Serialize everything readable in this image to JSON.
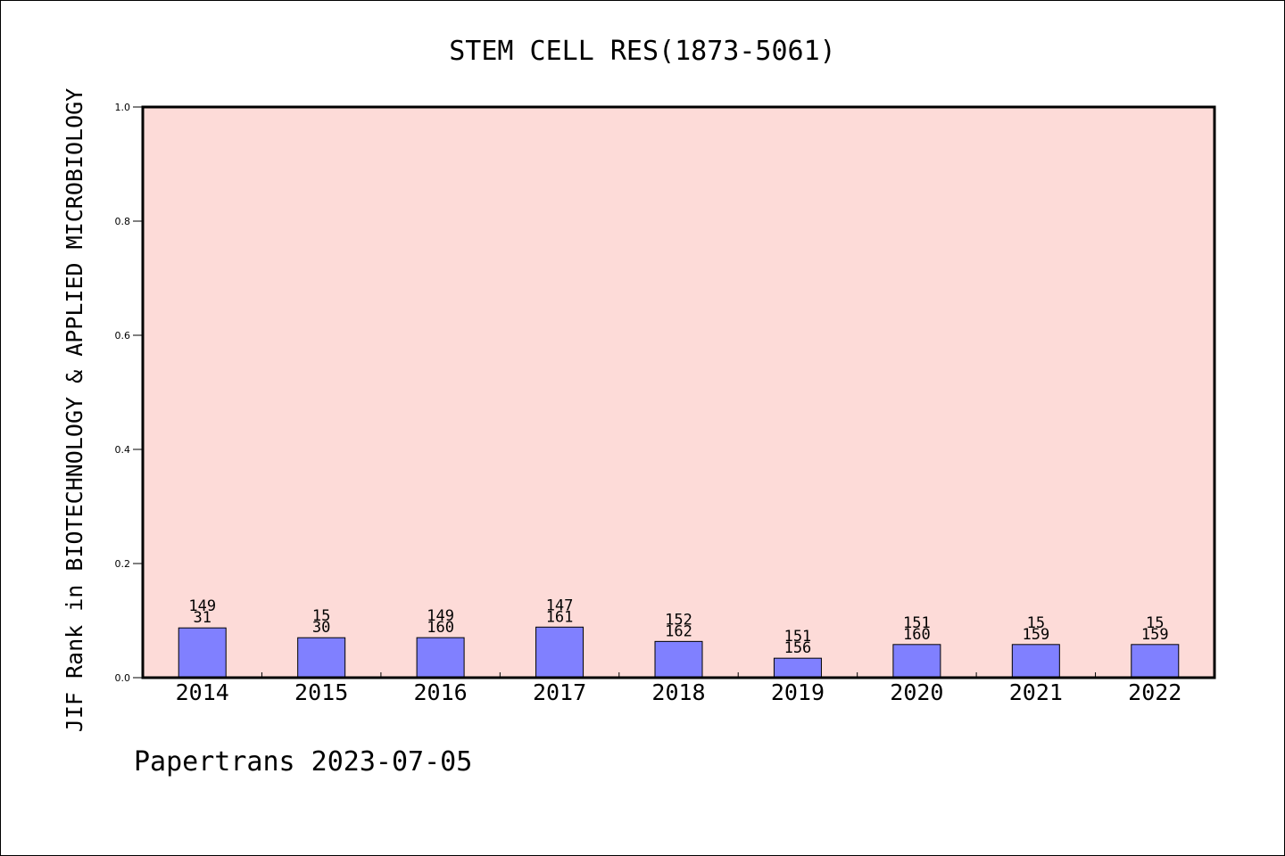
{
  "chart_data": {
    "type": "bar",
    "title": "STEM CELL RES(1873-5061)",
    "xlabel": "",
    "ylabel": "JIF Rank in BIOTECHNOLOGY & APPLIED MICROBIOLOGY",
    "ylim": [
      0,
      1.0
    ],
    "yticks": [
      "0.0",
      "0.2",
      "0.4",
      "0.6",
      "0.8",
      "1.0"
    ],
    "grid": false,
    "categories": [
      "2014",
      "2015",
      "2016",
      "2017",
      "2018",
      "2019",
      "2020",
      "2021",
      "2022"
    ],
    "values": [
      0.0872,
      0.07,
      0.0701,
      0.0886,
      0.0635,
      0.0341,
      0.0581,
      0.0581,
      0.0581
    ],
    "annotations": [
      {
        "rank": "149",
        "total": "31"
      },
      {
        "rank": "15",
        "total": "30"
      },
      {
        "rank": "149",
        "total": "160"
      },
      {
        "rank": "147",
        "total": "161"
      },
      {
        "rank": "152",
        "total": "162"
      },
      {
        "rank": "151",
        "total": "156"
      },
      {
        "rank": "151",
        "total": "160"
      },
      {
        "rank": "15",
        "total": "159"
      },
      {
        "rank": "15",
        "total": "159"
      }
    ],
    "colors": {
      "plot_background": "#FDDBD8",
      "bar": "#8080FF",
      "bar_edge": "#000000",
      "axis": "#000000"
    }
  },
  "footer": {
    "watermark": "Papertrans 2023-07-05"
  }
}
